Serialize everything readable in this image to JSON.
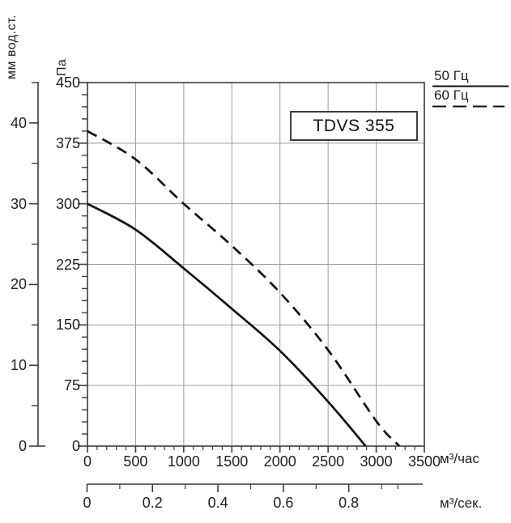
{
  "title": "TDVS 355",
  "chart_data": {
    "type": "line",
    "title": "TDVS 355",
    "grid": true,
    "legend_position": "top-right",
    "x_axis": {
      "label": "м³/час",
      "range": [
        0,
        3500
      ],
      "major_ticks": [
        0,
        500,
        1000,
        1500,
        2000,
        2500,
        3000,
        3500
      ],
      "tick_labels": [
        "0",
        "500",
        "1000",
        "1500",
        "2000",
        "2500",
        "3000",
        "3500"
      ],
      "minor_step": 100
    },
    "y_axis": {
      "label": "Па",
      "range": [
        0,
        450
      ],
      "major_ticks": [
        0,
        75,
        150,
        225,
        300,
        375,
        450
      ],
      "tick_labels": [
        "0",
        "75",
        "150",
        "225",
        "300",
        "375",
        "450"
      ],
      "minor_step": 15
    },
    "y2_axis": {
      "label": "мм вод.ст.",
      "range": [
        0,
        45
      ],
      "major_ticks": [
        0,
        10,
        20,
        30,
        40
      ],
      "tick_labels": [
        "0",
        "10",
        "20",
        "30",
        "40"
      ],
      "minor_ticks": [
        5,
        15,
        25,
        35,
        45
      ],
      "pa_per_unit": 10
    },
    "x2_axis": {
      "label": "м³/сек.",
      "range": [
        0,
        1.02
      ],
      "major_ticks": [
        0,
        0.2,
        0.4,
        0.6,
        0.8
      ],
      "tick_labels": [
        "0",
        "0.2",
        "0.4",
        "0.6",
        "0.8"
      ],
      "minor_ticks": [
        0.1,
        0.3,
        0.5,
        0.7,
        0.9,
        0.95
      ]
    },
    "series": [
      {
        "name": "50 Гц",
        "style": "solid",
        "points": [
          [
            0,
            300
          ],
          [
            500,
            268
          ],
          [
            1000,
            220
          ],
          [
            1500,
            170
          ],
          [
            2000,
            118
          ],
          [
            2500,
            55
          ],
          [
            2890,
            0
          ]
        ]
      },
      {
        "name": "60 Гц",
        "style": "dashed",
        "points": [
          [
            0,
            390
          ],
          [
            500,
            355
          ],
          [
            1000,
            300
          ],
          [
            1500,
            248
          ],
          [
            2000,
            190
          ],
          [
            2500,
            119
          ],
          [
            3000,
            31
          ],
          [
            3240,
            0
          ]
        ]
      }
    ],
    "colors": {
      "curve": "#111111",
      "grid": "#9c9c9c",
      "frame": "#3c3c3c",
      "text": "#1f1f1f"
    }
  }
}
